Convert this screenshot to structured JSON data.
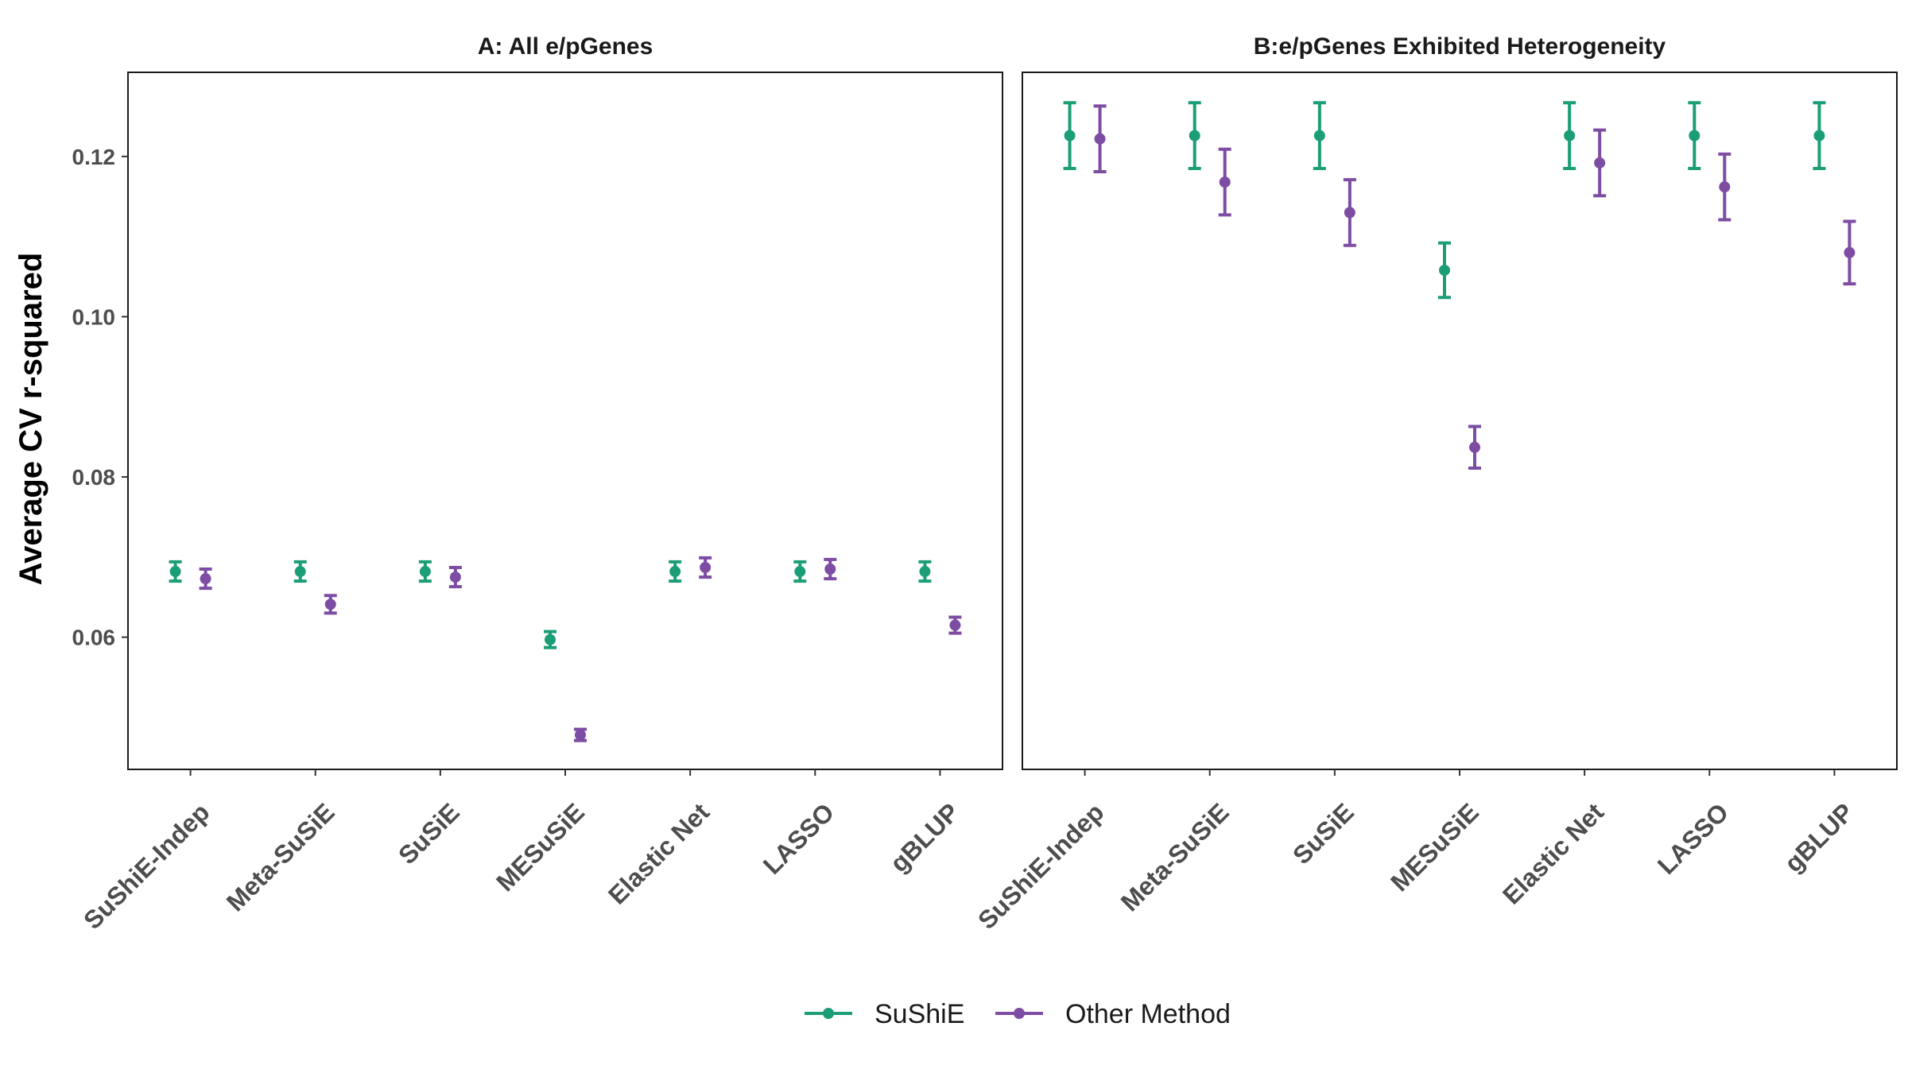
{
  "ylabel": "Average CV r-squared",
  "legend": [
    {
      "name": "SuShiE",
      "color": "#1b9e77"
    },
    {
      "name": "Other Method",
      "color": "#7d4ca3"
    }
  ],
  "chart_data": [
    {
      "type": "scatter",
      "subtype": "point-with-errorbars",
      "title": "A: All e/pGenes",
      "ylabel": "Average CV r-squared",
      "xlabel": "",
      "categories": [
        "SuShiE-Indep",
        "Meta-SuSiE",
        "SuSiE",
        "MESuSiE",
        "Elastic Net",
        "LASSO",
        "gBLUP"
      ],
      "yticks": [
        "0.06",
        "0.08",
        "0.10",
        "0.12"
      ],
      "ylim": [
        0.0435,
        0.1305
      ],
      "series": [
        {
          "name": "SuShiE",
          "color": "#1b9e77",
          "values": [
            0.0682,
            0.0682,
            0.0682,
            0.0597,
            0.0682,
            0.0682,
            0.0682
          ],
          "lower": [
            0.067,
            0.067,
            0.067,
            0.0587,
            0.067,
            0.067,
            0.067
          ],
          "upper": [
            0.0694,
            0.0694,
            0.0694,
            0.0607,
            0.0694,
            0.0694,
            0.0694
          ]
        },
        {
          "name": "Other Method",
          "color": "#7d4ca3",
          "values": [
            0.0673,
            0.0641,
            0.0675,
            0.0478,
            0.0687,
            0.0685,
            0.0615
          ],
          "lower": [
            0.0661,
            0.063,
            0.0663,
            0.0471,
            0.0675,
            0.0673,
            0.0605
          ],
          "upper": [
            0.0685,
            0.0652,
            0.0687,
            0.0485,
            0.0699,
            0.0697,
            0.0625
          ]
        }
      ],
      "grid": false
    },
    {
      "type": "scatter",
      "subtype": "point-with-errorbars",
      "title": "B:e/pGenes Exhibited Heterogeneity",
      "ylabel": "Average CV r-squared",
      "xlabel": "",
      "categories": [
        "SuShiE-Indep",
        "Meta-SuSiE",
        "SuSiE",
        "MESuSiE",
        "Elastic Net",
        "LASSO",
        "gBLUP"
      ],
      "yticks": [
        "0.06",
        "0.08",
        "0.10",
        "0.12"
      ],
      "ylim": [
        0.0435,
        0.1305
      ],
      "series": [
        {
          "name": "SuShiE",
          "color": "#1b9e77",
          "values": [
            0.1226,
            0.1226,
            0.1226,
            0.1058,
            0.1226,
            0.1226,
            0.1226
          ],
          "lower": [
            0.1185,
            0.1185,
            0.1185,
            0.1024,
            0.1185,
            0.1185,
            0.1185
          ],
          "upper": [
            0.1267,
            0.1267,
            0.1267,
            0.1092,
            0.1267,
            0.1267,
            0.1267
          ]
        },
        {
          "name": "Other Method",
          "color": "#7d4ca3",
          "values": [
            0.1222,
            0.1168,
            0.113,
            0.0837,
            0.1192,
            0.1162,
            0.108
          ],
          "lower": [
            0.1181,
            0.1127,
            0.1089,
            0.0811,
            0.1151,
            0.1121,
            0.1041
          ],
          "upper": [
            0.1263,
            0.1209,
            0.1171,
            0.0863,
            0.1233,
            0.1203,
            0.1119
          ]
        }
      ],
      "grid": false
    }
  ]
}
